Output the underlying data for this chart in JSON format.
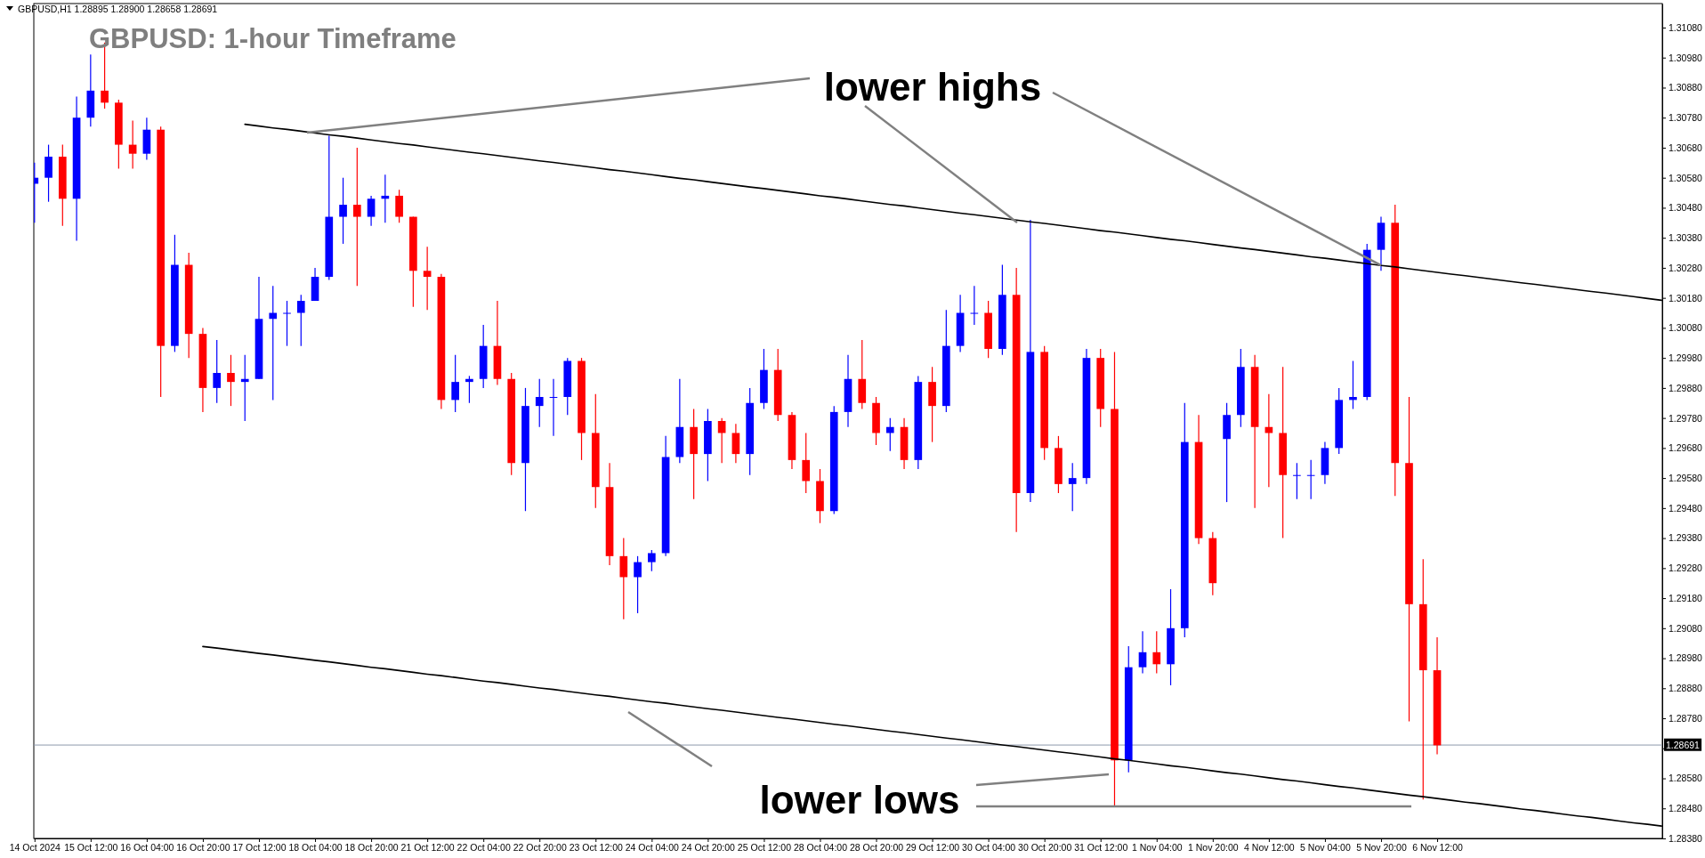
{
  "chart_data": {
    "type": "candlestick",
    "title": "GBPUSD: 1-hour Timeframe",
    "annotations": [
      "GBPUSD,H1  1.28895 1.28900 1.28658 1.28691",
      {
        "text": "lower highs",
        "x": "5 Nov 20:00",
        "y": 1.30288
      },
      "lower lows"
    ],
    "categories": [
      "14 Oct 2024",
      null,
      null,
      null,
      "15 Oct 12:00",
      null,
      null,
      null,
      "16 Oct 04:00",
      null,
      null,
      null,
      "16 Oct 20:00",
      null,
      null,
      null,
      "17 Oct 12:00",
      null,
      null,
      null,
      "18 Oct 04:00",
      null,
      null,
      null,
      "18 Oct 20:00",
      null,
      null,
      null,
      "21 Oct 12:00",
      null,
      null,
      null,
      "22 Oct 04:00",
      null,
      null,
      null,
      "22 Oct 20:00",
      null,
      null,
      null,
      "23 Oct 12:00",
      null,
      null,
      null,
      "24 Oct 04:00",
      null,
      null,
      null,
      "24 Oct 20:00",
      null,
      null,
      null,
      "25 Oct 12:00",
      null,
      null,
      null,
      "28 Oct 04:00",
      null,
      null,
      null,
      "28 Oct 20:00",
      null,
      null,
      null,
      "29 Oct 12:00",
      null,
      null,
      null,
      "30 Oct 04:00",
      null,
      null,
      null,
      "30 Oct 20:00",
      null,
      null,
      null,
      "31 Oct 12:00",
      null,
      null,
      null,
      "1 Nov 04:00",
      null,
      null,
      null,
      "1 Nov 20:00",
      null,
      null,
      null,
      "4 Nov 12:00",
      null,
      null,
      null,
      "5 Nov 04:00",
      null,
      null,
      null,
      "5 Nov 20:00",
      null,
      null,
      null,
      "6 Nov 12:00",
      null,
      null,
      null,
      null,
      null,
      null,
      null,
      null,
      null,
      null,
      null,
      null,
      null,
      null,
      null,
      null
    ],
    "ohlc": [
      [
        1.3056,
        1.3063,
        1.3043,
        1.3058
      ],
      [
        1.3058,
        1.3069,
        1.305,
        1.3065
      ],
      [
        1.3065,
        1.3069,
        1.3042,
        1.3051
      ],
      [
        1.3051,
        1.3085,
        1.3037,
        1.3078
      ],
      [
        1.3078,
        1.3099,
        1.3075,
        1.3087
      ],
      [
        1.3087,
        1.3103,
        1.3081,
        1.3083
      ],
      [
        1.3083,
        1.3084,
        1.3061,
        1.3069
      ],
      [
        1.3069,
        1.3077,
        1.3061,
        1.3066
      ],
      [
        1.3066,
        1.3078,
        1.3064,
        1.3074
      ],
      [
        1.3074,
        1.3075,
        1.2985,
        1.3002
      ],
      [
        1.3002,
        1.3039,
        1.3,
        1.3029
      ],
      [
        1.3029,
        1.3033,
        1.2998,
        1.3006
      ],
      [
        1.3006,
        1.3008,
        1.298,
        1.2988
      ],
      [
        1.2988,
        1.3004,
        1.2983,
        1.2993
      ],
      [
        1.2993,
        1.2999,
        1.2982,
        1.299
      ],
      [
        1.299,
        1.2999,
        1.2977,
        1.2991
      ],
      [
        1.2991,
        1.3025,
        1.2991,
        1.3011
      ],
      [
        1.3011,
        1.3022,
        1.2984,
        1.3013
      ],
      [
        1.3013,
        1.3017,
        1.3002,
        1.3013
      ],
      [
        1.3013,
        1.3019,
        1.3002,
        1.3017
      ],
      [
        1.3017,
        1.3028,
        1.3017,
        1.3025
      ],
      [
        1.3025,
        1.3072,
        1.3024,
        1.3045
      ],
      [
        1.3045,
        1.3058,
        1.3036,
        1.3049
      ],
      [
        1.3049,
        1.3068,
        1.3022,
        1.3045
      ],
      [
        1.3045,
        1.3052,
        1.3042,
        1.3051
      ],
      [
        1.3051,
        1.3059,
        1.3043,
        1.3052
      ],
      [
        1.3052,
        1.3054,
        1.3043,
        1.3045
      ],
      [
        1.3045,
        1.3045,
        1.3015,
        1.3027
      ],
      [
        1.3027,
        1.3035,
        1.3014,
        1.3025
      ],
      [
        1.3025,
        1.3026,
        1.2981,
        1.2984
      ],
      [
        1.2984,
        1.2999,
        1.298,
        1.299
      ],
      [
        1.299,
        1.2992,
        1.2983,
        1.2991
      ],
      [
        1.2991,
        1.3009,
        1.2988,
        1.3002
      ],
      [
        1.3002,
        1.3017,
        1.2989,
        1.2991
      ],
      [
        1.2991,
        1.2993,
        1.2959,
        1.2963
      ],
      [
        1.2963,
        1.2988,
        1.2947,
        1.2982
      ],
      [
        1.2982,
        1.2991,
        1.2975,
        1.2985
      ],
      [
        1.2985,
        1.2991,
        1.2972,
        1.2985
      ],
      [
        1.2985,
        1.2998,
        1.2979,
        1.2997
      ],
      [
        1.2997,
        1.2998,
        1.2964,
        1.2973
      ],
      [
        1.2973,
        1.2986,
        1.2948,
        1.2955
      ],
      [
        1.2955,
        1.2963,
        1.2929,
        1.2932
      ],
      [
        1.2932,
        1.2938,
        1.2911,
        1.2925
      ],
      [
        1.2925,
        1.2932,
        1.2913,
        1.293
      ],
      [
        1.293,
        1.2934,
        1.2927,
        1.2933
      ],
      [
        1.2933,
        1.2972,
        1.2932,
        1.2965
      ],
      [
        1.2965,
        1.2991,
        1.2963,
        1.2975
      ],
      [
        1.2975,
        1.2981,
        1.2951,
        1.2966
      ],
      [
        1.2966,
        1.2981,
        1.2957,
        1.2977
      ],
      [
        1.2977,
        1.2978,
        1.2963,
        1.2973
      ],
      [
        1.2973,
        1.2976,
        1.2963,
        1.2966
      ],
      [
        1.2966,
        1.2988,
        1.2959,
        1.2983
      ],
      [
        1.2983,
        1.3001,
        1.2981,
        1.2994
      ],
      [
        1.2994,
        1.3001,
        1.2977,
        1.2979
      ],
      [
        1.2979,
        1.298,
        1.2961,
        1.2964
      ],
      [
        1.2964,
        1.2973,
        1.2953,
        1.2957
      ],
      [
        1.2957,
        1.2961,
        1.2943,
        1.2947
      ],
      [
        1.2947,
        1.2982,
        1.2946,
        1.298
      ],
      [
        1.298,
        1.2999,
        1.2975,
        1.2991
      ],
      [
        1.2991,
        1.3004,
        1.2981,
        1.2983
      ],
      [
        1.2983,
        1.2985,
        1.2969,
        1.2973
      ],
      [
        1.2973,
        1.2978,
        1.2967,
        1.2975
      ],
      [
        1.2975,
        1.2978,
        1.2961,
        1.2964
      ],
      [
        1.2964,
        1.2992,
        1.2961,
        1.299
      ],
      [
        1.299,
        1.2995,
        1.297,
        1.2982
      ],
      [
        1.2982,
        1.3014,
        1.298,
        1.3002
      ],
      [
        1.3002,
        1.3019,
        1.3,
        1.3013
      ],
      [
        1.3013,
        1.3022,
        1.3009,
        1.3013
      ],
      [
        1.3013,
        1.3017,
        1.2998,
        1.3001
      ],
      [
        1.3001,
        1.3029,
        1.2999,
        1.3019
      ],
      [
        1.3019,
        1.3028,
        1.294,
        1.2953
      ],
      [
        1.2953,
        1.3044,
        1.295,
        1.3
      ],
      [
        1.3,
        1.3002,
        1.2964,
        1.2968
      ],
      [
        1.2968,
        1.2972,
        1.2953,
        1.2956
      ],
      [
        1.2956,
        1.2963,
        1.2947,
        1.2958
      ],
      [
        1.2958,
        1.3001,
        1.2956,
        1.2998
      ],
      [
        1.2998,
        1.3001,
        1.2975,
        1.2981
      ],
      [
        1.2981,
        1.3,
        1.2849,
        1.2864
      ],
      [
        1.2864,
        1.2902,
        1.286,
        1.2895
      ],
      [
        1.2895,
        1.2907,
        1.2893,
        1.29
      ],
      [
        1.29,
        1.2907,
        1.2893,
        1.2896
      ],
      [
        1.2896,
        1.2921,
        1.2889,
        1.2908
      ],
      [
        1.2908,
        1.2983,
        1.2905,
        1.297
      ],
      [
        1.297,
        1.2979,
        1.2936,
        1.2938
      ],
      [
        1.2938,
        1.294,
        1.2919,
        1.2923
      ],
      [
        1.2971,
        1.2983,
        1.295,
        1.2979
      ],
      [
        1.2979,
        1.3001,
        1.2975,
        1.2995
      ],
      [
        1.2995,
        1.2999,
        1.2948,
        1.2975
      ],
      [
        1.2975,
        1.2986,
        1.2955,
        1.2973
      ],
      [
        1.2973,
        1.2995,
        1.2938,
        1.2959
      ],
      [
        1.2959,
        1.2963,
        1.2951,
        1.2959
      ],
      [
        1.2959,
        1.2964,
        1.2951,
        1.2959
      ],
      [
        1.2959,
        1.297,
        1.2956,
        1.2968
      ],
      [
        1.2968,
        1.2988,
        1.2966,
        1.2984
      ],
      [
        1.2984,
        1.2997,
        1.2981,
        1.2985
      ],
      [
        1.2985,
        1.3036,
        1.2984,
        1.3034
      ],
      [
        1.3034,
        1.3045,
        1.3027,
        1.3043
      ],
      [
        1.3043,
        1.3049,
        1.2952,
        1.2963
      ],
      [
        1.2963,
        1.2985,
        1.2877,
        1.2916
      ],
      [
        1.2916,
        1.2931,
        1.2851,
        1.2894
      ],
      [
        1.2894,
        1.2905,
        1.2866,
        1.2869
      ],
      null,
      null,
      null,
      null,
      null,
      null,
      null,
      null,
      null,
      null,
      null,
      null,
      null,
      null,
      null,
      null
    ],
    "colors": [
      "#0000ff",
      "#0000ff",
      "#ff0000",
      "#0000ff",
      "#0000ff",
      "#ff0000",
      "#ff0000",
      "#ff0000",
      "#0000ff",
      "#ff0000",
      "#0000ff",
      "#ff0000",
      "#ff0000",
      "#0000ff",
      "#ff0000",
      "#0000ff",
      "#0000ff",
      "#0000ff",
      "#0000ff",
      "#0000ff",
      "#0000ff",
      "#0000ff",
      "#0000ff",
      "#ff0000",
      "#0000ff",
      "#0000ff",
      "#ff0000",
      "#ff0000",
      "#ff0000",
      "#ff0000",
      "#0000ff",
      "#0000ff",
      "#0000ff",
      "#ff0000",
      "#ff0000",
      "#0000ff",
      "#0000ff",
      "#0000ff",
      "#0000ff",
      "#ff0000",
      "#ff0000",
      "#ff0000",
      "#ff0000",
      "#0000ff",
      "#0000ff",
      "#0000ff",
      "#0000ff",
      "#ff0000",
      "#0000ff",
      "#ff0000",
      "#ff0000",
      "#0000ff",
      "#0000ff",
      "#ff0000",
      "#ff0000",
      "#ff0000",
      "#ff0000",
      "#0000ff",
      "#0000ff",
      "#ff0000",
      "#ff0000",
      "#0000ff",
      "#ff0000",
      "#0000ff",
      "#ff0000",
      "#0000ff",
      "#0000ff",
      "#0000ff",
      "#ff0000",
      "#0000ff",
      "#ff0000",
      "#0000ff",
      "#ff0000",
      "#ff0000",
      "#0000ff",
      "#0000ff",
      "#ff0000",
      "#ff0000",
      "#0000ff",
      "#0000ff",
      "#ff0000",
      "#0000ff",
      "#0000ff",
      "#ff0000",
      "#ff0000",
      "#0000ff",
      "#0000ff",
      "#ff0000",
      "#ff0000",
      "#ff0000",
      "#0000ff",
      "#0000ff",
      "#0000ff",
      "#0000ff",
      "#0000ff",
      "#0000ff",
      "#0000ff",
      "#ff0000",
      "#ff0000",
      "#ff0000",
      "#ff0000",
      null,
      null,
      null,
      null,
      null,
      null,
      null,
      null,
      null,
      null,
      null,
      null,
      null,
      null,
      null,
      null
    ],
    "series": [
      {
        "type": "line",
        "color": "#000000",
        "values": [
          null,
          null,
          null,
          null,
          null,
          null,
          null,
          null,
          null,
          null,
          null,
          null,
          null,
          null,
          null,
          1.30758,
          1.30752,
          1.30746,
          1.30741,
          1.30735,
          1.30729,
          1.30723,
          1.30718,
          1.30712,
          1.30706,
          1.307,
          1.30694,
          1.30689,
          1.30683,
          1.30677,
          1.30671,
          1.30665,
          1.3066,
          1.30654,
          1.30648,
          1.30642,
          1.30636,
          1.30631,
          1.30625,
          1.30619,
          1.30613,
          1.30607,
          1.30602,
          1.30596,
          1.3059,
          1.30584,
          1.30578,
          1.30573,
          1.30567,
          1.30561,
          1.30555,
          1.30549,
          1.30544,
          1.30538,
          1.30532,
          1.30526,
          1.3052,
          1.30515,
          1.30509,
          1.30503,
          1.30497,
          1.30491,
          1.30486,
          1.3048,
          1.30474,
          1.30468,
          1.30462,
          1.30457,
          1.30451,
          1.30445,
          1.30439,
          1.30433,
          1.30428,
          1.30422,
          1.30416,
          1.3041,
          1.30404,
          1.30399,
          1.30393,
          1.30387,
          1.30381,
          1.30375,
          1.3037,
          1.30364,
          1.30358,
          1.30352,
          1.30346,
          1.30341,
          1.30335,
          1.30329,
          1.30323,
          1.30317,
          1.30312,
          1.30306,
          1.303,
          1.30294,
          1.30288,
          1.30283,
          1.30277,
          1.30271,
          1.30265,
          1.30259,
          1.30254,
          1.30248,
          1.30242,
          1.30236,
          1.3023,
          1.30225,
          1.30219,
          1.30213,
          1.30207,
          1.30201,
          1.30196,
          1.3019,
          1.30184,
          1.30178,
          1.30172
        ]
      },
      {
        "type": "line",
        "color": "#000000",
        "values": [
          null,
          null,
          null,
          null,
          null,
          null,
          null,
          null,
          null,
          null,
          null,
          null,
          1.29019,
          1.29014,
          1.29008,
          1.29002,
          1.28996,
          1.28991,
          1.28985,
          1.28979,
          1.28973,
          1.28968,
          1.28962,
          1.28956,
          1.2895,
          1.28945,
          1.28939,
          1.28933,
          1.28927,
          1.28922,
          1.28916,
          1.2891,
          1.28904,
          1.28899,
          1.28893,
          1.28887,
          1.28881,
          1.28876,
          1.2887,
          1.28864,
          1.28858,
          1.28853,
          1.28847,
          1.28841,
          1.28835,
          1.2883,
          1.28824,
          1.28818,
          1.28812,
          1.28807,
          1.28801,
          1.28795,
          1.28789,
          1.28783,
          1.28778,
          1.28772,
          1.28766,
          1.2876,
          1.28755,
          1.28749,
          1.28743,
          1.28737,
          1.28732,
          1.28726,
          1.2872,
          1.28714,
          1.28709,
          1.28703,
          1.28697,
          1.28691,
          1.28686,
          1.2868,
          1.28674,
          1.28668,
          1.28663,
          1.28657,
          1.28651,
          1.28645,
          1.2864,
          1.28634,
          1.28628,
          1.28622,
          1.28617,
          1.28611,
          1.28605,
          1.28599,
          1.28594,
          1.28588,
          1.28582,
          1.28576,
          1.28571,
          1.28565,
          1.28559,
          1.28553,
          1.28548,
          1.28542,
          1.28536,
          1.2853,
          1.28524,
          1.28519,
          1.28513,
          1.28507,
          1.28501,
          1.28496,
          1.2849,
          1.28484,
          1.28478,
          1.28473,
          1.28467,
          1.28461,
          1.28455,
          1.2845,
          1.28444,
          1.28438,
          1.28432,
          1.28427,
          1.28421
        ]
      }
    ],
    "ylim": [
      1.2838,
      1.3116
    ],
    "yticks": [
      {
        "value": 1.2838,
        "label": "1.28380"
      },
      {
        "value": 1.2848,
        "label": "1.28480"
      },
      {
        "value": 1.2858,
        "label": "1.28580"
      },
      {
        "value": 1.2868,
        "label": null
      },
      {
        "value": 1.2878,
        "label": "1.28780"
      },
      {
        "value": 1.2888,
        "label": "1.28880"
      },
      {
        "value": 1.2898,
        "label": "1.28980"
      },
      {
        "value": 1.2908,
        "label": "1.29080"
      },
      {
        "value": 1.2918,
        "label": "1.29180"
      },
      {
        "value": 1.2928,
        "label": "1.29280"
      },
      {
        "value": 1.2938,
        "label": "1.29380"
      },
      {
        "value": 1.2948,
        "label": "1.29480"
      },
      {
        "value": 1.2958,
        "label": "1.29580"
      },
      {
        "value": 1.2968,
        "label": "1.29680"
      },
      {
        "value": 1.2978,
        "label": "1.29780"
      },
      {
        "value": 1.2988,
        "label": "1.29880"
      },
      {
        "value": 1.2998,
        "label": "1.29980"
      },
      {
        "value": 1.3008,
        "label": "1.30080"
      },
      {
        "value": 1.3018,
        "label": "1.30180"
      },
      {
        "value": 1.3028,
        "label": "1.30280"
      },
      {
        "value": 1.3038,
        "label": "1.30380"
      },
      {
        "value": 1.3048,
        "label": "1.30480"
      },
      {
        "value": 1.3058,
        "label": "1.30580"
      },
      {
        "value": 1.3068,
        "label": "1.30680"
      },
      {
        "value": 1.3078,
        "label": "1.30780"
      },
      {
        "value": 1.3088,
        "label": "1.30880"
      },
      {
        "value": 1.3098,
        "label": "1.30980"
      },
      {
        "value": 1.3108,
        "label": "1.31080"
      }
    ],
    "ref_lines": [
      {
        "axis": "y",
        "value": 1.28691,
        "label": "1.28691",
        "color": "#8c98ac"
      }
    ]
  }
}
